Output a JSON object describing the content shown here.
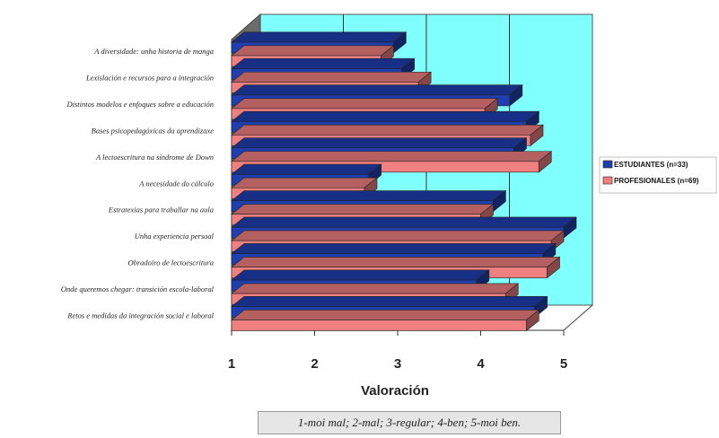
{
  "chart_data": {
    "type": "bar",
    "orientation": "horizontal",
    "three_d": true,
    "categories": [
      "A diversidade: unha historia de manga",
      "Lexislación e recursos para a integración",
      "Distintos modelos e enfoques sobre a educación",
      "Bases psicopedagóxicas da aprendizaxe",
      "A lectoescritura na síndrome de Down",
      "A necesidade do cálculo",
      "Estratexias para traballar na aula",
      "Unha experiencia persoal",
      "Obradoiro de lectoescritura",
      "Onde queremos chegar: transición escola-laboral",
      "Retos e medidas da integración social e laboral"
    ],
    "series": [
      {
        "name": "ESTUDIANTES (n=33)",
        "color": "#1f3fb0",
        "values": [
          2.95,
          3.05,
          4.35,
          4.55,
          4.4,
          2.65,
          4.15,
          5.0,
          4.75,
          3.95,
          4.65
        ]
      },
      {
        "name": "PROFESIONALES (n=69)",
        "color": "#f08080",
        "values": [
          2.8,
          3.25,
          4.05,
          4.6,
          4.7,
          2.6,
          4.0,
          4.85,
          4.8,
          4.3,
          4.55
        ]
      }
    ],
    "xlim": [
      1,
      5
    ],
    "xticks": [
      "1",
      "2",
      "3",
      "4",
      "5"
    ],
    "xlabel": "Valoración",
    "grid": true,
    "legend_position": "right",
    "plot_color": "#80ffff",
    "floor_color": "#ffffff",
    "note": "1-moi mal; 2-mal; 3-regular; 4-ben; 5-moi ben."
  }
}
